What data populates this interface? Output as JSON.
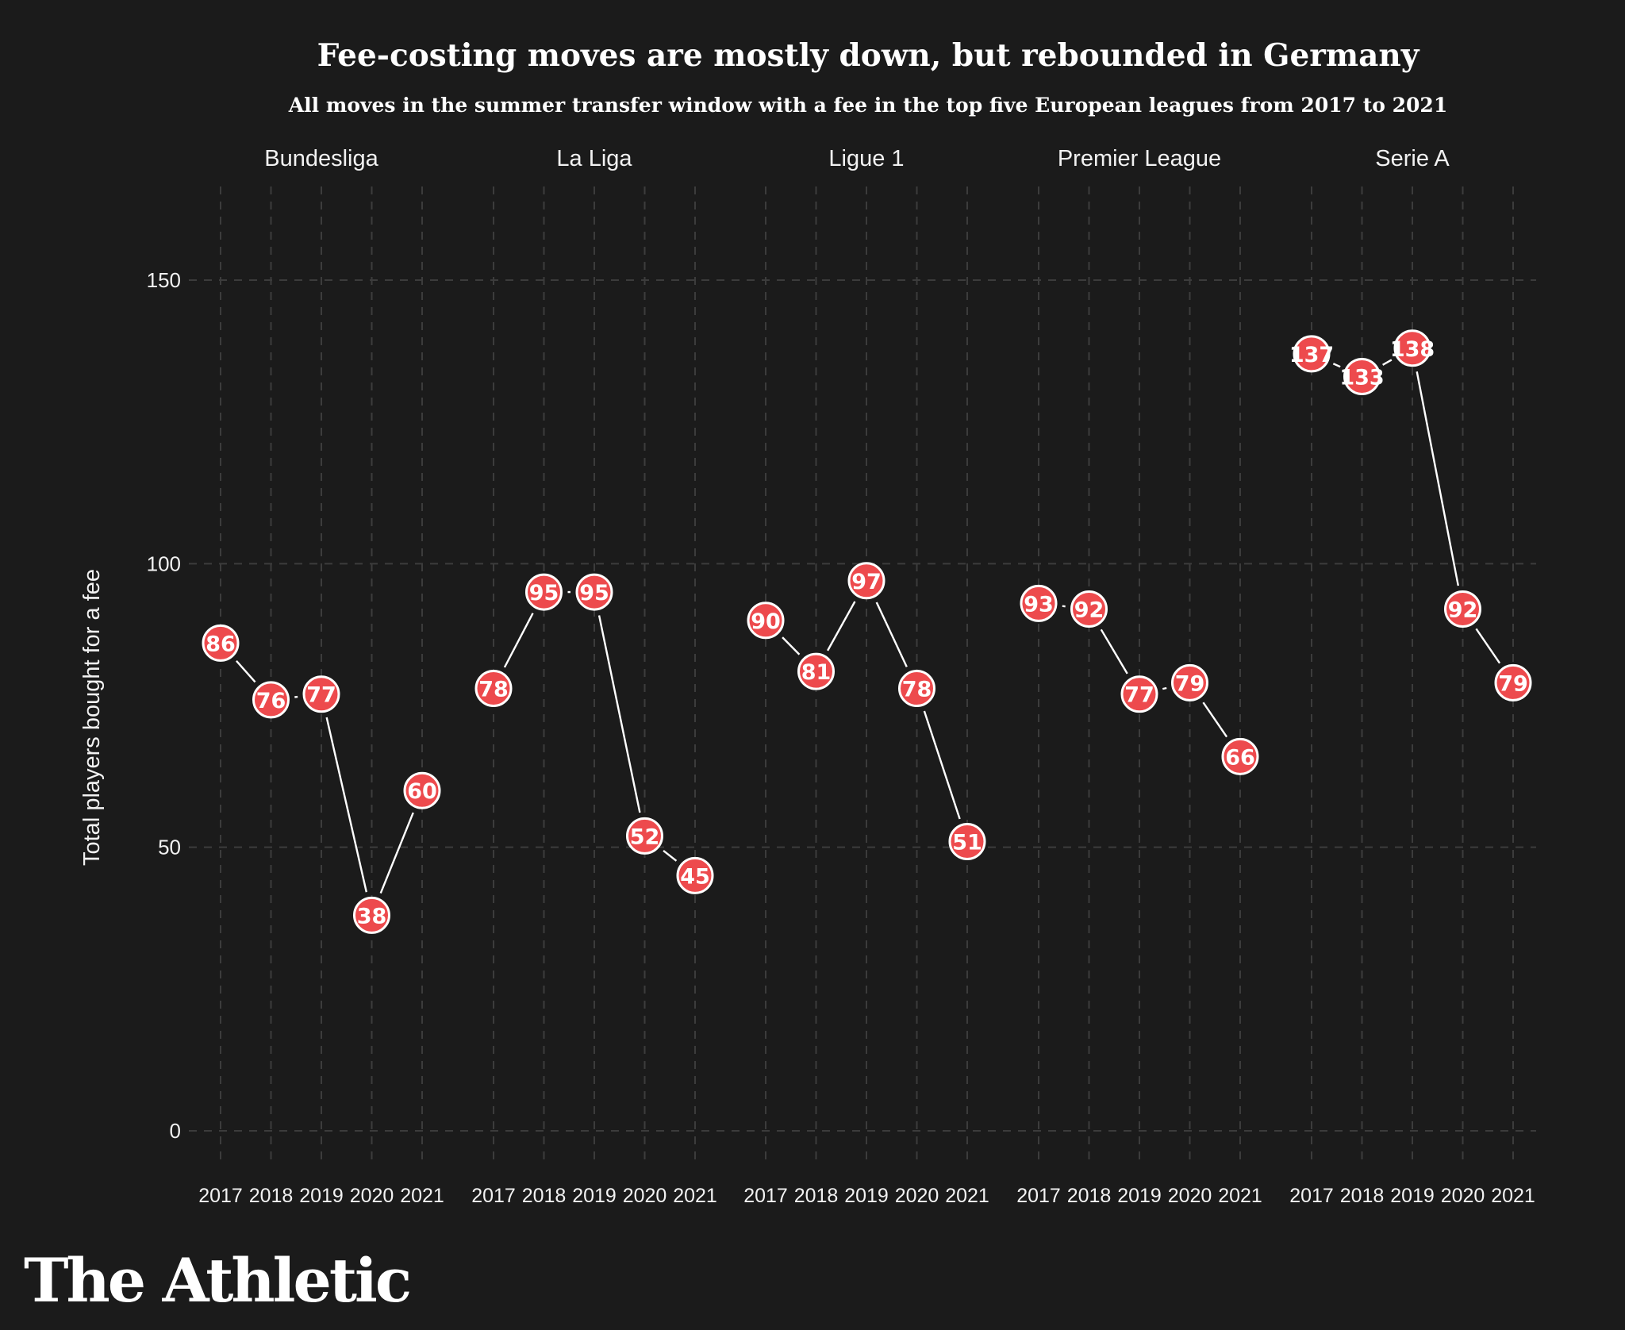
{
  "chart_data": {
    "type": "line",
    "title": "Fee-costing moves are mostly down, but rebounded in Germany",
    "subtitle": "All moves in the summer transfer window with a fee in the top five European leagues from 2017 to 2021",
    "ylabel": "Total players bought for a fee",
    "xlabel": "",
    "ylim": [
      -8,
      167
    ],
    "yticks": [
      0,
      50,
      100,
      150
    ],
    "grid": true,
    "x": [
      "2017",
      "2018",
      "2019",
      "2020",
      "2021"
    ],
    "facets": [
      {
        "name": "Bundesliga",
        "values": [
          86,
          76,
          77,
          38,
          60
        ]
      },
      {
        "name": "La Liga",
        "values": [
          78,
          95,
          95,
          52,
          45
        ]
      },
      {
        "name": "Ligue 1",
        "values": [
          90,
          81,
          97,
          78,
          51
        ]
      },
      {
        "name": "Premier League",
        "values": [
          93,
          92,
          77,
          79,
          66
        ]
      },
      {
        "name": "Serie A",
        "values": [
          137,
          133,
          138,
          92,
          79
        ]
      }
    ],
    "colors": {
      "background": "#1b1b1b",
      "point_fill": "#ed4a4d",
      "point_stroke": "#ffffff",
      "line": "#ffffff",
      "grid": "#3c3c3c",
      "text": "#ffffff"
    }
  },
  "branding": {
    "logo_text": "The Athletic"
  }
}
